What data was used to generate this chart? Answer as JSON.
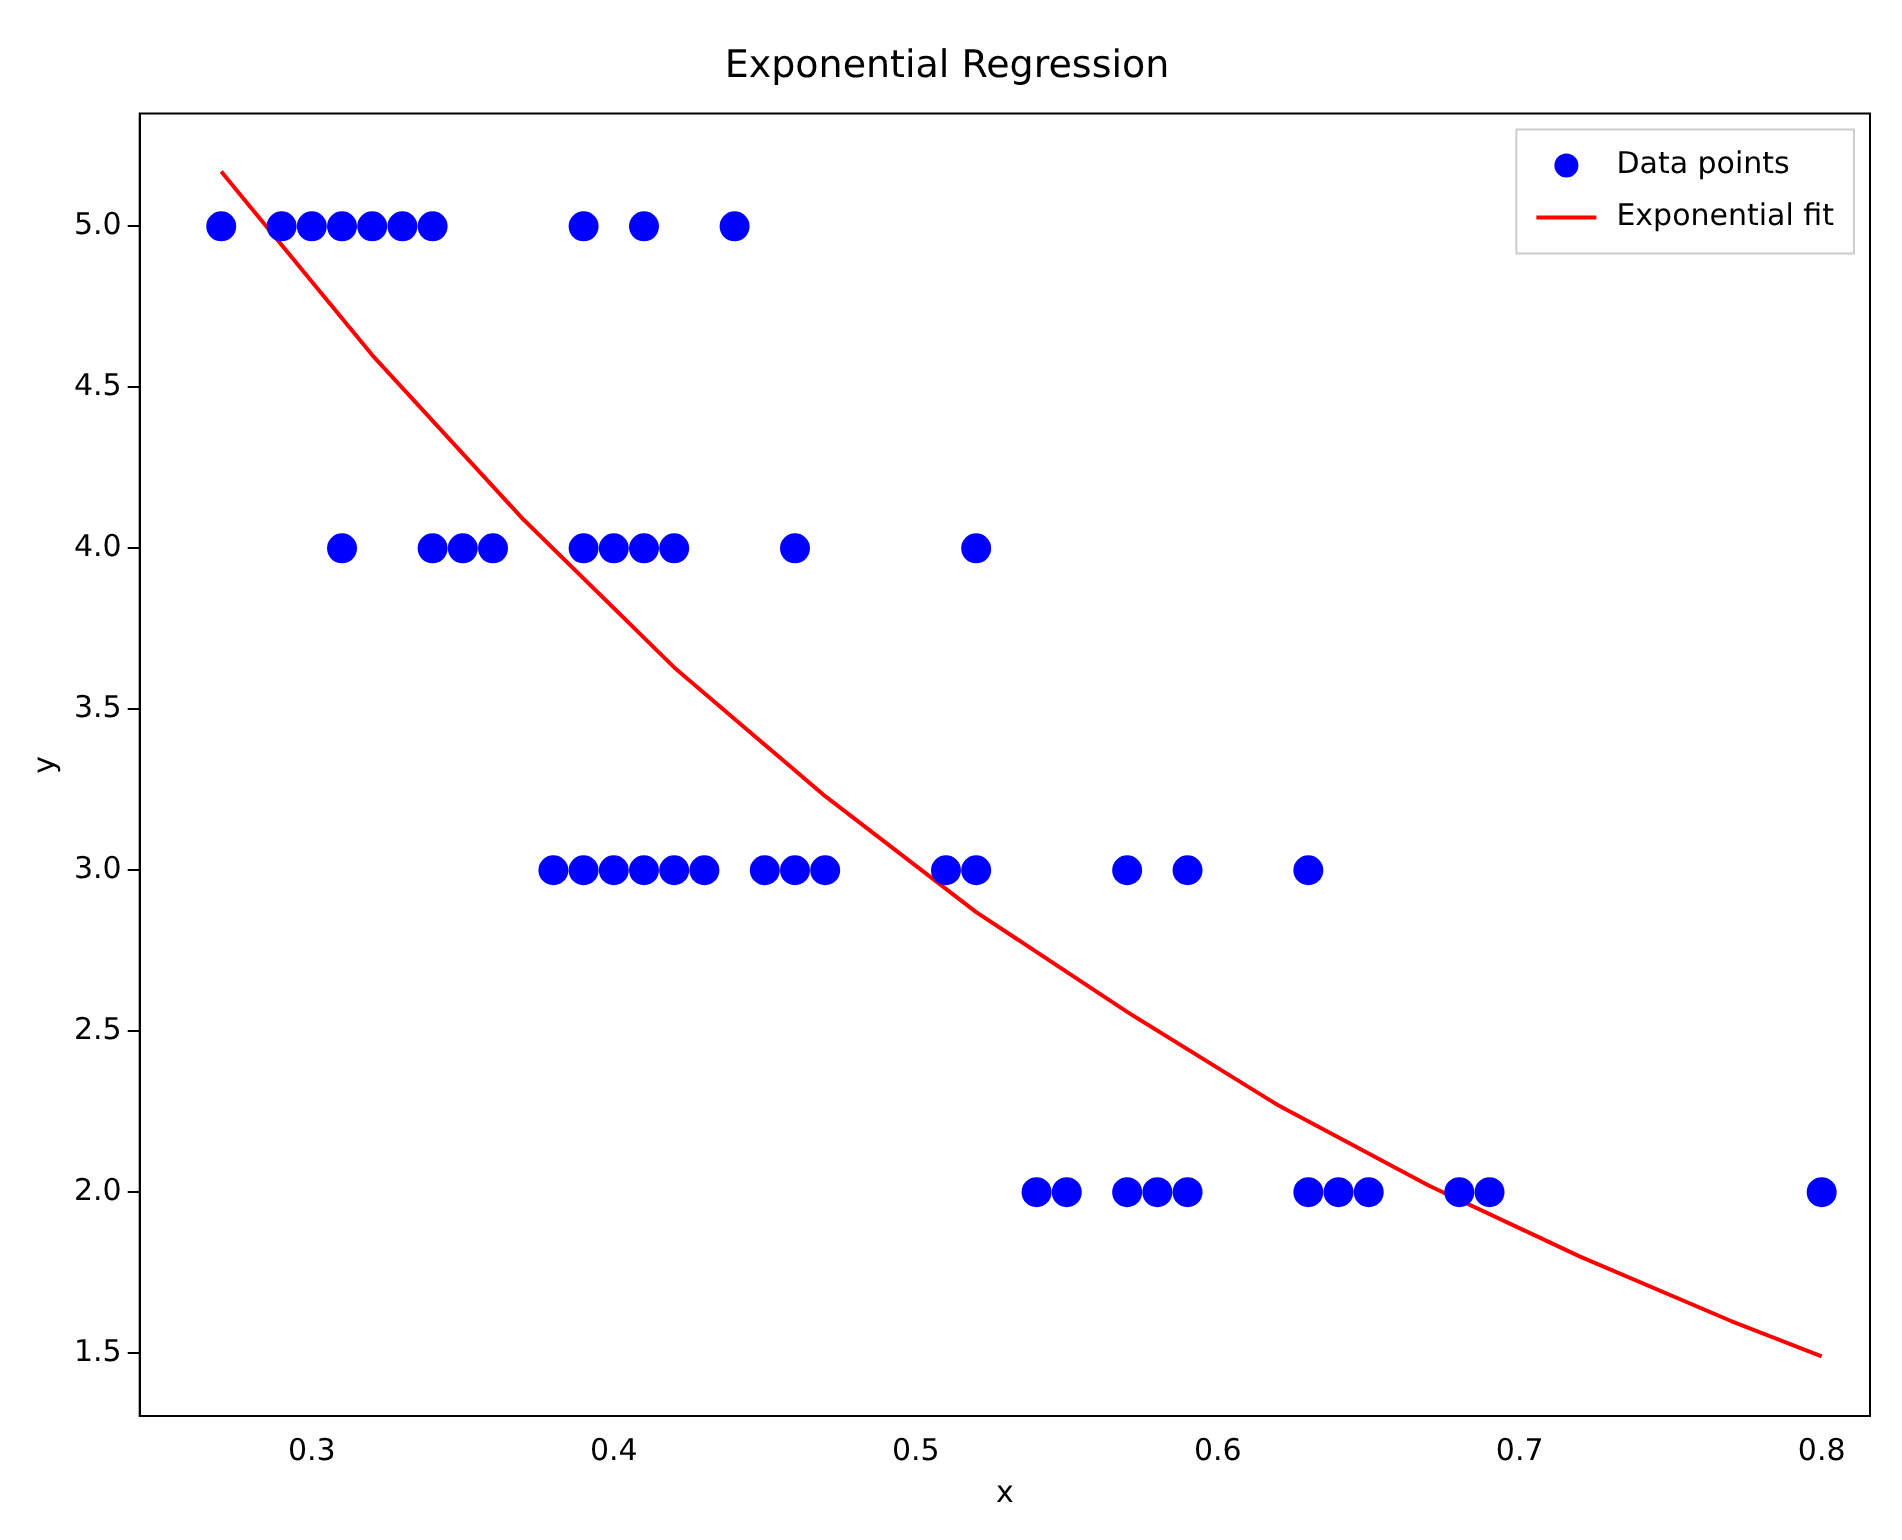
{
  "chart_data": {
    "type": "scatter",
    "title": "Exponential Regression",
    "xlabel": "x",
    "ylabel": "y",
    "xlim": [
      0.243,
      0.816
    ],
    "xticks": [
      0.3,
      0.4,
      0.5,
      0.6,
      0.7,
      0.8
    ],
    "ylim": [
      1.305,
      5.35
    ],
    "yticks": [
      {
        "value": 1.5,
        "label": "1.5"
      },
      {
        "value": 2,
        "label": "2.0"
      },
      {
        "value": 2.5,
        "label": "2.5"
      },
      {
        "value": 3,
        "label": "3.0"
      },
      {
        "value": 3.5,
        "label": "3.5"
      },
      {
        "value": 4,
        "label": "4.0"
      },
      {
        "value": 4.5,
        "label": "4.5"
      },
      {
        "value": 5,
        "label": "5.0"
      }
    ],
    "grid": false,
    "legend": "top right",
    "series": [
      {
        "name": "Data points",
        "color": "#0000ff",
        "marker": "circle",
        "x": [
          0.27,
          0.29,
          0.3,
          0.31,
          0.32,
          0.33,
          0.34,
          0.39,
          0.41,
          0.44,
          0.31,
          0.34,
          0.35,
          0.36,
          0.39,
          0.4,
          0.41,
          0.42,
          0.46,
          0.52,
          0.38,
          0.39,
          0.4,
          0.41,
          0.42,
          0.43,
          0.45,
          0.46,
          0.47,
          0.51,
          0.52,
          0.57,
          0.59,
          0.63,
          0.54,
          0.55,
          0.57,
          0.58,
          0.59,
          0.63,
          0.64,
          0.65,
          0.68,
          0.69,
          0.8
        ],
        "values": [
          5,
          5,
          5,
          5,
          5,
          5,
          5,
          5,
          5,
          5,
          4,
          4,
          4,
          4,
          4,
          4,
          4,
          4,
          4,
          4,
          3,
          3,
          3,
          3,
          3,
          3,
          3,
          3,
          3,
          3,
          3,
          3,
          3,
          3,
          2,
          2,
          2,
          2,
          2,
          2,
          2,
          2,
          2,
          2,
          2
        ]
      },
      {
        "name": "Exponential fit",
        "type": "line",
        "color": "#ff0000",
        "marker": "none",
        "line_style": "solid",
        "x": [
          0.27,
          0.32,
          0.37,
          0.42,
          0.47,
          0.52,
          0.57,
          0.62,
          0.67,
          0.72,
          0.77,
          0.8
        ],
        "values": [
          5.17,
          4.6,
          4.09,
          3.63,
          3.23,
          2.87,
          2.56,
          2.27,
          2.02,
          1.8,
          1.6,
          1.49
        ]
      }
    ]
  }
}
